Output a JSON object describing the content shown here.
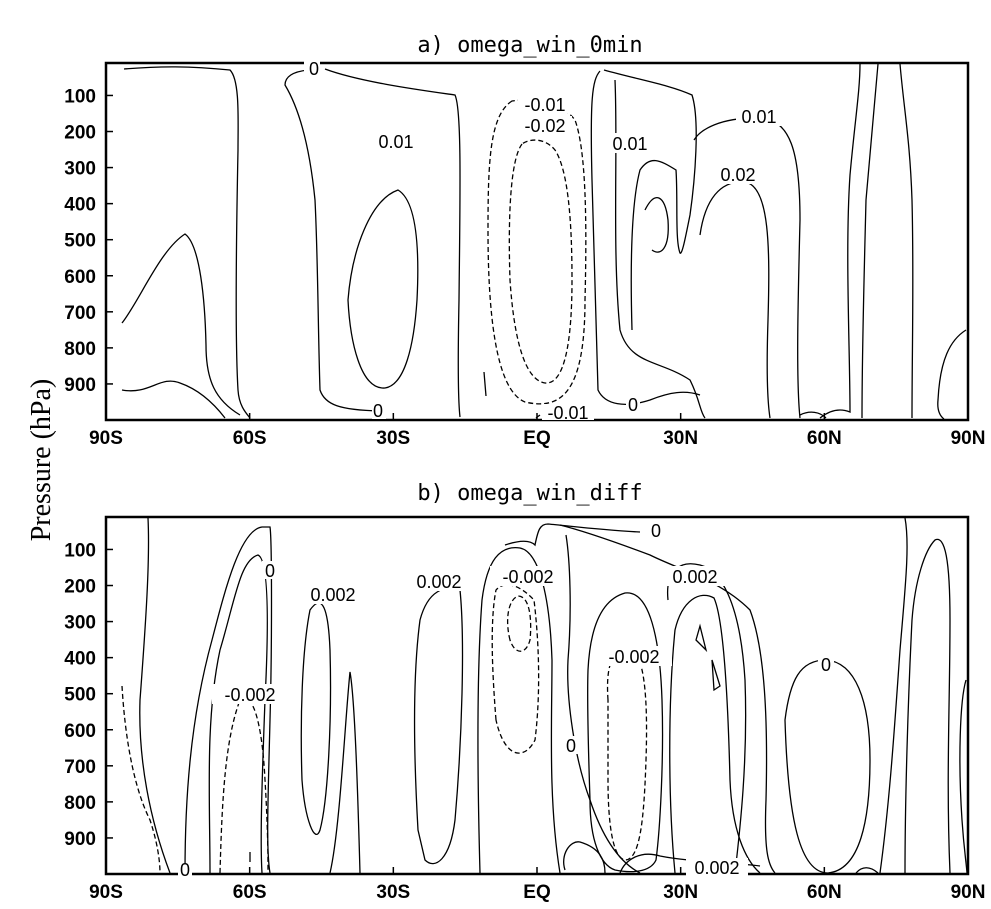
{
  "chart_data": [
    {
      "type": "contour",
      "title": "a) omega_win_0min",
      "ylabel": "Pressure (hPa)",
      "x_ticks": [
        "90S",
        "60S",
        "30S",
        "EQ",
        "30N",
        "60N",
        "90N"
      ],
      "y_ticks": [
        "100",
        "200",
        "300",
        "400",
        "500",
        "600",
        "700",
        "800",
        "900"
      ],
      "xlim": [
        -90,
        90
      ],
      "ylim": [
        1000,
        10
      ],
      "contour_levels_labeled": [
        "0",
        "0.01",
        "-0.01",
        "-0.02",
        "0.01",
        "0.01",
        "0.02",
        "0",
        "-0.01",
        "0"
      ]
    },
    {
      "type": "contour",
      "title": "b) omega_win_diff",
      "ylabel": "Pressure (hPa)",
      "x_ticks": [
        "90S",
        "60S",
        "30S",
        "EQ",
        "30N",
        "60N",
        "90N"
      ],
      "y_ticks": [
        "100",
        "200",
        "300",
        "400",
        "500",
        "600",
        "700",
        "800",
        "900"
      ],
      "xlim": [
        -90,
        90
      ],
      "ylim": [
        1000,
        10
      ],
      "contour_levels_labeled": [
        "0",
        "0",
        "0.002",
        "0.002",
        "-0.002",
        "-0.002",
        "0.002",
        "-0.002",
        "0",
        "0",
        "0",
        "0.002",
        "0"
      ]
    }
  ]
}
